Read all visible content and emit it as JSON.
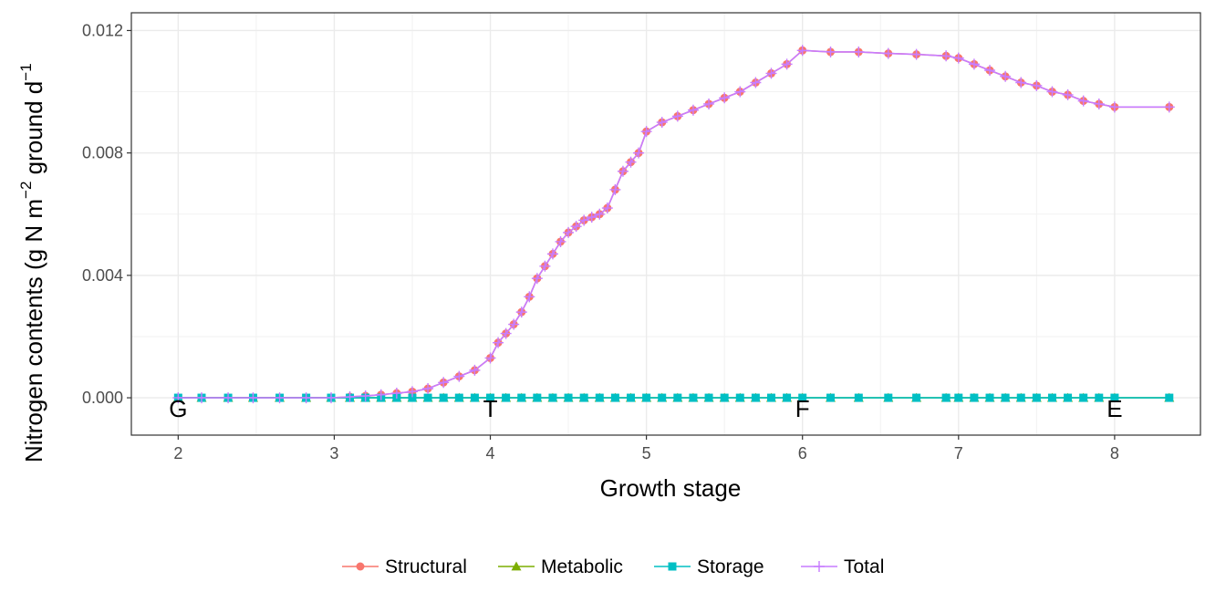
{
  "chart_data": {
    "type": "line",
    "xlabel": "Growth stage",
    "ylabel": "Nitrogen contents (g N  m",
    "ylabel_sup": "−2",
    "ylabel_tail": "  ground  d",
    "ylabel_tail_sup": "−1",
    "xlim": [
      1.7,
      8.55
    ],
    "ylim": [
      -0.00122,
      0.01258
    ],
    "x_ticks": [
      2,
      3,
      4,
      5,
      6,
      7,
      8
    ],
    "x_tick_labels": [
      "2",
      "3",
      "4",
      "5",
      "6",
      "7",
      "8"
    ],
    "y_ticks": [
      0.0,
      0.004,
      0.008,
      0.012
    ],
    "y_tick_labels": [
      "0.000",
      "0.004",
      "0.008",
      "0.012"
    ],
    "grid": true,
    "legend_position": "bottom",
    "stage_markers": [
      {
        "x": 2,
        "label": "G"
      },
      {
        "x": 4,
        "label": "T"
      },
      {
        "x": 6,
        "label": "F"
      },
      {
        "x": 8,
        "label": "E"
      }
    ],
    "series": [
      {
        "name": "Structural",
        "color": "#F8766D",
        "marker": "circle",
        "x": [
          2.0,
          2.15,
          2.32,
          2.48,
          2.65,
          2.82,
          2.98,
          3.1,
          3.2,
          3.3,
          3.4,
          3.5,
          3.6,
          3.7,
          3.8,
          3.9,
          4.0,
          4.05,
          4.1,
          4.15,
          4.2,
          4.25,
          4.3,
          4.35,
          4.4,
          4.45,
          4.5,
          4.55,
          4.6,
          4.65,
          4.7,
          4.75,
          4.8,
          4.85,
          4.9,
          4.95,
          5.0,
          5.1,
          5.2,
          5.3,
          5.4,
          5.5,
          5.6,
          5.7,
          5.8,
          5.9,
          6.0,
          6.18,
          6.36,
          6.55,
          6.73,
          6.92,
          7.0,
          7.1,
          7.2,
          7.3,
          7.4,
          7.5,
          7.6,
          7.7,
          7.8,
          7.9,
          8.0,
          8.35
        ],
        "values": [
          0.0,
          0.0,
          0.0,
          0.0,
          0.0,
          0.0,
          0.0,
          3e-05,
          6e-05,
          0.0001,
          0.00015,
          0.0002,
          0.0003,
          0.0005,
          0.0007,
          0.0009,
          0.0013,
          0.0018,
          0.0021,
          0.0024,
          0.0028,
          0.0033,
          0.0039,
          0.0043,
          0.0047,
          0.0051,
          0.0054,
          0.0056,
          0.0058,
          0.0059,
          0.006,
          0.0062,
          0.0068,
          0.0074,
          0.0077,
          0.008,
          0.0087,
          0.009,
          0.0092,
          0.0094,
          0.0096,
          0.0098,
          0.01,
          0.0103,
          0.0106,
          0.0109,
          0.01135,
          0.0113,
          0.0113,
          0.01125,
          0.01122,
          0.01117,
          0.0111,
          0.0109,
          0.0107,
          0.0105,
          0.0103,
          0.0102,
          0.01,
          0.0099,
          0.0097,
          0.0096,
          0.0095,
          0.0095
        ]
      },
      {
        "name": "Metabolic",
        "color": "#7CAE00",
        "marker": "triangle",
        "x": [
          2.0,
          2.15,
          2.32,
          2.48,
          2.65,
          2.82,
          2.98,
          3.1,
          3.2,
          3.3,
          3.4,
          3.5,
          3.6,
          3.7,
          3.8,
          3.9,
          4.0,
          4.1,
          4.2,
          4.3,
          4.4,
          4.5,
          4.6,
          4.7,
          4.8,
          4.9,
          5.0,
          5.1,
          5.2,
          5.3,
          5.4,
          5.5,
          5.6,
          5.7,
          5.8,
          5.9,
          6.0,
          6.18,
          6.36,
          6.55,
          6.73,
          6.92,
          7.0,
          7.1,
          7.2,
          7.3,
          7.4,
          7.5,
          7.6,
          7.7,
          7.8,
          7.9,
          8.0,
          8.35
        ],
        "values": [
          0.0,
          0.0,
          0.0,
          0.0,
          0.0,
          0.0,
          0.0,
          0.0,
          0.0,
          0.0,
          0.0,
          0.0,
          0.0,
          0.0,
          0.0,
          0.0,
          0.0,
          0.0,
          0.0,
          0.0,
          0.0,
          0.0,
          0.0,
          0.0,
          0.0,
          0.0,
          0.0,
          0.0,
          0.0,
          0.0,
          0.0,
          0.0,
          0.0,
          0.0,
          0.0,
          0.0,
          0.0,
          0.0,
          0.0,
          0.0,
          0.0,
          0.0,
          0.0,
          0.0,
          0.0,
          0.0,
          0.0,
          0.0,
          0.0,
          0.0,
          0.0,
          0.0,
          0.0,
          0.0
        ]
      },
      {
        "name": "Storage",
        "color": "#00BFC4",
        "marker": "square",
        "x": [
          2.0,
          2.15,
          2.32,
          2.48,
          2.65,
          2.82,
          2.98,
          3.1,
          3.2,
          3.3,
          3.4,
          3.5,
          3.6,
          3.7,
          3.8,
          3.9,
          4.0,
          4.1,
          4.2,
          4.3,
          4.4,
          4.5,
          4.6,
          4.7,
          4.8,
          4.9,
          5.0,
          5.1,
          5.2,
          5.3,
          5.4,
          5.5,
          5.6,
          5.7,
          5.8,
          5.9,
          6.0,
          6.18,
          6.36,
          6.55,
          6.73,
          6.92,
          7.0,
          7.1,
          7.2,
          7.3,
          7.4,
          7.5,
          7.6,
          7.7,
          7.8,
          7.9,
          8.0,
          8.35
        ],
        "values": [
          0.0,
          0.0,
          0.0,
          0.0,
          0.0,
          0.0,
          0.0,
          0.0,
          0.0,
          0.0,
          0.0,
          0.0,
          0.0,
          0.0,
          0.0,
          0.0,
          0.0,
          0.0,
          0.0,
          0.0,
          0.0,
          0.0,
          0.0,
          0.0,
          0.0,
          0.0,
          0.0,
          0.0,
          0.0,
          0.0,
          0.0,
          0.0,
          0.0,
          0.0,
          0.0,
          0.0,
          0.0,
          0.0,
          0.0,
          0.0,
          0.0,
          0.0,
          0.0,
          0.0,
          0.0,
          0.0,
          0.0,
          0.0,
          0.0,
          0.0,
          0.0,
          0.0,
          0.0,
          0.0
        ]
      },
      {
        "name": "Total",
        "color": "#C77CFF",
        "marker": "plus",
        "x": [
          2.0,
          2.15,
          2.32,
          2.48,
          2.65,
          2.82,
          2.98,
          3.1,
          3.2,
          3.3,
          3.4,
          3.5,
          3.6,
          3.7,
          3.8,
          3.9,
          4.0,
          4.05,
          4.1,
          4.15,
          4.2,
          4.25,
          4.3,
          4.35,
          4.4,
          4.45,
          4.5,
          4.55,
          4.6,
          4.65,
          4.7,
          4.75,
          4.8,
          4.85,
          4.9,
          4.95,
          5.0,
          5.1,
          5.2,
          5.3,
          5.4,
          5.5,
          5.6,
          5.7,
          5.8,
          5.9,
          6.0,
          6.18,
          6.36,
          6.55,
          6.73,
          6.92,
          7.0,
          7.1,
          7.2,
          7.3,
          7.4,
          7.5,
          7.6,
          7.7,
          7.8,
          7.9,
          8.0,
          8.35
        ],
        "values": [
          0.0,
          0.0,
          0.0,
          0.0,
          0.0,
          0.0,
          0.0,
          3e-05,
          6e-05,
          0.0001,
          0.00015,
          0.0002,
          0.0003,
          0.0005,
          0.0007,
          0.0009,
          0.0013,
          0.0018,
          0.0021,
          0.0024,
          0.0028,
          0.0033,
          0.0039,
          0.0043,
          0.0047,
          0.0051,
          0.0054,
          0.0056,
          0.0058,
          0.0059,
          0.006,
          0.0062,
          0.0068,
          0.0074,
          0.0077,
          0.008,
          0.0087,
          0.009,
          0.0092,
          0.0094,
          0.0096,
          0.0098,
          0.01,
          0.0103,
          0.0106,
          0.0109,
          0.01135,
          0.0113,
          0.0113,
          0.01125,
          0.01122,
          0.01117,
          0.0111,
          0.0109,
          0.0107,
          0.0105,
          0.0103,
          0.0102,
          0.01,
          0.0099,
          0.0097,
          0.0096,
          0.0095,
          0.0095
        ]
      }
    ]
  }
}
